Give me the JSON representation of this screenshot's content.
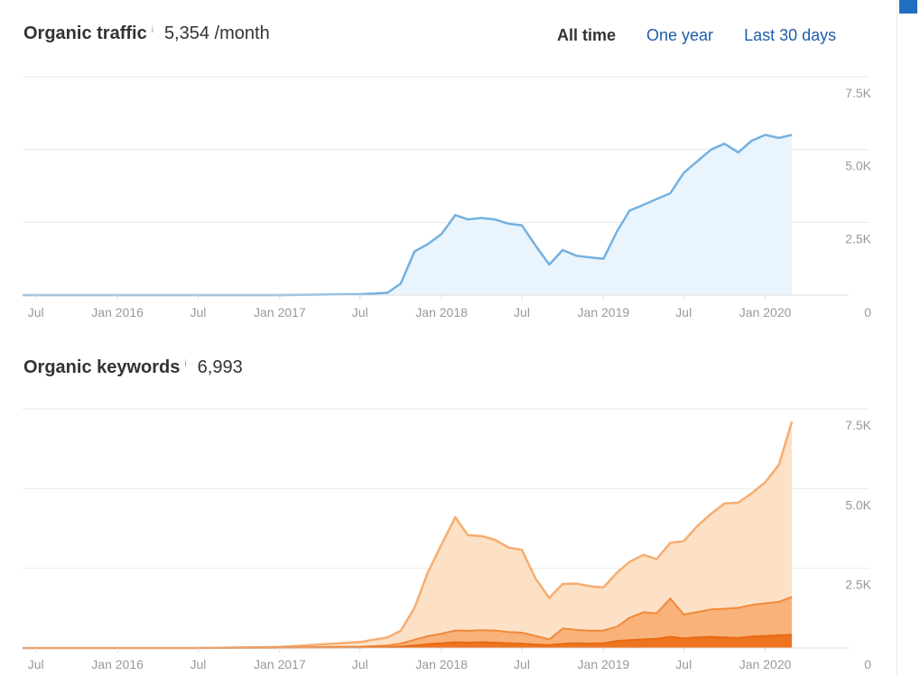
{
  "header": {
    "range_tabs": [
      {
        "label": "All time",
        "active": true
      },
      {
        "label": "One year",
        "active": false
      },
      {
        "label": "Last 30 days",
        "active": false
      }
    ]
  },
  "traffic": {
    "title": "Organic traffic",
    "info_icon": "i",
    "value": "5,354 /month"
  },
  "keywords": {
    "title": "Organic keywords",
    "info_icon": "i",
    "value": "6,993"
  },
  "colors": {
    "traffic_line": "#74b1e0",
    "traffic_fill": "#eaf4fd",
    "keywords_total_line": "#f6ad70",
    "keywords_total_fill": "#fde1c7",
    "keywords_mid_line": "#f08a3a",
    "keywords_mid_fill": "#f9b27a",
    "keywords_top_line": "#e76a12",
    "keywords_top_fill": "#ee7420",
    "accent": "#1f6ebf"
  },
  "chart_data": [
    {
      "type": "area",
      "title": "Organic traffic",
      "x_ticks": [
        "Jul",
        "Jan 2016",
        "Jul",
        "Jan 2017",
        "Jul",
        "Jan 2018",
        "Jul",
        "Jan 2019",
        "Jul",
        "Jan 2020"
      ],
      "y_ticks": [
        "7.5K",
        "5.0K",
        "2.5K",
        "0"
      ],
      "ylim": [
        0,
        7500
      ],
      "grid": true,
      "x": [
        "2015-06",
        "2015-09",
        "2016-01",
        "2016-07",
        "2017-01",
        "2017-07",
        "2017-09",
        "2017-10",
        "2017-11",
        "2017-12",
        "2018-01",
        "2018-02",
        "2018-03",
        "2018-04",
        "2018-05",
        "2018-06",
        "2018-07",
        "2018-08",
        "2018-09",
        "2018-10",
        "2018-11",
        "2018-12",
        "2019-01",
        "2019-02",
        "2019-03",
        "2019-04",
        "2019-05",
        "2019-06",
        "2019-07",
        "2019-08",
        "2019-09",
        "2019-10",
        "2019-11",
        "2019-12",
        "2020-01",
        "2020-02",
        "2020-03"
      ],
      "series": [
        {
          "values": [
            0,
            0,
            0,
            0,
            0,
            30,
            80,
            400,
            1500,
            1750,
            2100,
            2750,
            2600,
            2650,
            2600,
            2450,
            2400,
            1700,
            1050,
            1550,
            1350,
            1300,
            1250,
            2200,
            2900,
            3100,
            3300,
            3500,
            4200,
            4600,
            5000,
            5200,
            4900,
            5300,
            5500,
            5400,
            5500
          ]
        }
      ]
    },
    {
      "type": "area",
      "title": "Organic keywords",
      "x_ticks": [
        "Jul",
        "Jan 2016",
        "Jul",
        "Jan 2017",
        "Jul",
        "Jan 2018",
        "Jul",
        "Jan 2019",
        "Jul",
        "Jan 2020"
      ],
      "y_ticks": [
        "7.5K",
        "5.0K",
        "2.5K",
        "0"
      ],
      "ylim": [
        0,
        7500
      ],
      "grid": true,
      "stacked": true,
      "x": [
        "2015-06",
        "2015-09",
        "2016-01",
        "2016-07",
        "2017-01",
        "2017-07",
        "2017-09",
        "2017-10",
        "2017-11",
        "2017-12",
        "2018-01",
        "2018-02",
        "2018-03",
        "2018-04",
        "2018-05",
        "2018-06",
        "2018-07",
        "2018-08",
        "2018-09",
        "2018-10",
        "2018-11",
        "2018-12",
        "2019-01",
        "2019-02",
        "2019-03",
        "2019-04",
        "2019-05",
        "2019-06",
        "2019-07",
        "2019-08",
        "2019-09",
        "2019-10",
        "2019-11",
        "2019-12",
        "2020-01",
        "2020-02",
        "2020-03"
      ],
      "series": [
        {
          "values": [
            0,
            0,
            0,
            0,
            5,
            10,
            20,
            40,
            80,
            120,
            150,
            180,
            170,
            180,
            170,
            150,
            140,
            110,
            90,
            130,
            150,
            140,
            150,
            220,
            250,
            270,
            290,
            350,
            300,
            330,
            350,
            330,
            320,
            360,
            380,
            400,
            420
          ]
        },
        {
          "values": [
            0,
            0,
            0,
            0,
            5,
            30,
            60,
            100,
            180,
            250,
            300,
            370,
            370,
            380,
            380,
            350,
            340,
            270,
            180,
            480,
            420,
            400,
            400,
            450,
            700,
            850,
            800,
            1200,
            750,
            800,
            860,
            900,
            940,
            990,
            1020,
            1050,
            1180
          ]
        },
        {
          "values": [
            0,
            0,
            0,
            0,
            20,
            150,
            250,
            400,
            1000,
            2000,
            2800,
            3550,
            3000,
            2950,
            2850,
            2650,
            2600,
            1800,
            1300,
            1400,
            1450,
            1400,
            1350,
            1700,
            1750,
            1800,
            1700,
            1750,
            2300,
            2700,
            3000,
            3300,
            3300,
            3500,
            3800,
            4300,
            5500
          ]
        }
      ]
    }
  ]
}
